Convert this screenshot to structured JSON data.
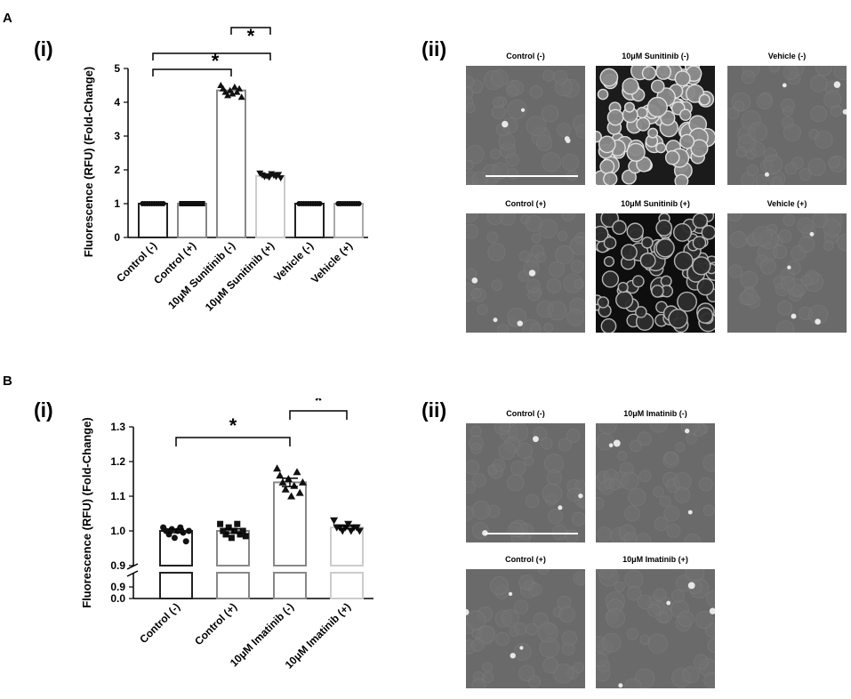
{
  "panels": {
    "A": {
      "letter": "A",
      "sub_i": "(i)",
      "sub_ii": "(ii)",
      "micrographs": [
        {
          "title": "Control (-)",
          "style": "dim"
        },
        {
          "title": "10μM Sunitinib (-)",
          "style": "bright"
        },
        {
          "title": "Vehicle (-)",
          "style": "dim"
        },
        {
          "title": "Control (+)",
          "style": "dim"
        },
        {
          "title": "10μM Sunitinib (+)",
          "style": "dark"
        },
        {
          "title": "Vehicle (+)",
          "style": "dim"
        }
      ]
    },
    "B": {
      "letter": "B",
      "sub_i": "(i)",
      "sub_ii": "(ii)",
      "micrographs": [
        {
          "title": "Control (-)",
          "style": "dim"
        },
        {
          "title": "10μM Imatinib (-)",
          "style": "dim"
        },
        {
          "title": "Control (+)",
          "style": "dim"
        },
        {
          "title": "10μM Imatinib (+)",
          "style": "dim"
        }
      ]
    }
  },
  "chart_data": [
    {
      "type": "bar",
      "ylabel": "Fluorescence (RFU) (Fold-Change)",
      "ylim": [
        0,
        5
      ],
      "yticks": [
        "0",
        "1",
        "2",
        "3",
        "4",
        "5"
      ],
      "categories": [
        "Control (-)",
        "Control (+)",
        "10μM Sunitinib (-)",
        "10μM Sunitinib (+)",
        "Vehicle (-)",
        "Vehicle (+)"
      ],
      "values": [
        1.0,
        1.0,
        4.35,
        1.82,
        1.0,
        1.0
      ],
      "bar_colors": [
        "#222222",
        "#888888",
        "#888888",
        "#cccccc",
        "#222222",
        "#aaaaaa"
      ],
      "markers": [
        "circle",
        "square",
        "triangle",
        "triangle-down",
        "circle",
        "circle"
      ],
      "points": [
        [
          1.0,
          1.0,
          1.0,
          1.0,
          1.0,
          1.0,
          1.0,
          1.0,
          1.0,
          1.0
        ],
        [
          1.0,
          1.0,
          1.0,
          1.0,
          1.0,
          1.0,
          1.0,
          1.0,
          1.0,
          1.0
        ],
        [
          4.5,
          4.4,
          4.3,
          4.2,
          4.35,
          4.25,
          4.45,
          4.3,
          4.4,
          4.15
        ],
        [
          1.9,
          1.85,
          1.8,
          1.82,
          1.78,
          1.88,
          1.84,
          1.8,
          1.86,
          1.76
        ],
        [
          1.0,
          1.0,
          1.0,
          1.0,
          1.0,
          1.0,
          1.0,
          1.0,
          1.0,
          1.0
        ],
        [
          1.0,
          1.0,
          1.0,
          1.0,
          1.0,
          1.0,
          1.0,
          1.0,
          1.0,
          1.0
        ]
      ],
      "significance": [
        {
          "from": 0,
          "to": 2,
          "label": "*"
        },
        {
          "from": 0,
          "to": 3,
          "label": "*"
        },
        {
          "from": 2,
          "to": 3,
          "label": "*"
        }
      ]
    },
    {
      "type": "bar",
      "ylabel": "Fluorescence (RFU) (Fold-Change)",
      "ylim": [
        0.9,
        1.3
      ],
      "yticks": [
        "0.9",
        "1.0",
        "1.1",
        "1.2",
        "1.3"
      ],
      "axis_break": {
        "below": "0.9",
        "bottom": "0.0"
      },
      "categories": [
        "Control (-)",
        "Control (+)",
        "10μM Imatinib (-)",
        "10μM Imatinib (+)"
      ],
      "values": [
        1.0,
        1.0,
        1.14,
        1.01
      ],
      "errors": [
        0.005,
        0.006,
        0.012,
        0.004
      ],
      "bar_colors": [
        "#222222",
        "#888888",
        "#888888",
        "#cccccc"
      ],
      "markers": [
        "circle",
        "square",
        "triangle",
        "triangle-down"
      ],
      "points": [
        [
          1.01,
          1.0,
          0.99,
          1.005,
          0.98,
          1.0,
          1.01,
          0.995,
          0.97,
          1.0
        ],
        [
          1.02,
          1.0,
          0.99,
          1.01,
          0.98,
          1.0,
          1.02,
          0.99,
          1.0,
          0.985
        ],
        [
          1.18,
          1.16,
          1.14,
          1.12,
          1.15,
          1.1,
          1.13,
          1.17,
          1.11,
          1.14
        ],
        [
          1.03,
          1.01,
          1.01,
          1.0,
          1.01,
          1.02,
          1.0,
          1.01,
          1.01,
          1.0
        ]
      ],
      "significance": [
        {
          "from": 0,
          "to": 2,
          "label": "*"
        },
        {
          "from": 2,
          "to": 3,
          "label": "*"
        }
      ]
    }
  ]
}
